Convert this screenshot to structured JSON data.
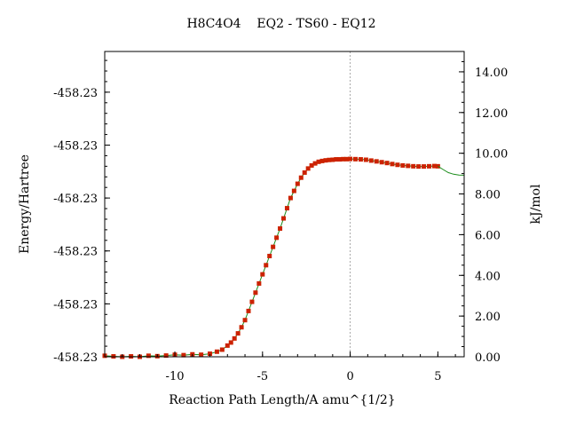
{
  "chart_data": {
    "type": "line",
    "title": "H8C4O4    EQ2 - TS60 - EQ12",
    "xlabel": "Reaction Path Length/A amu^{1/2}",
    "ylabel_left": "Energy/Hartree",
    "ylabel_right": "kJ/mol",
    "xlim": [
      -14,
      6.5
    ],
    "ylim_right": [
      0,
      15
    ],
    "x_ticks": [
      -10,
      -5,
      0,
      5
    ],
    "x_tick_labels": [
      "-10",
      "-5",
      "0",
      "5"
    ],
    "left_tick_labels": [
      "-458.23",
      "-458.23",
      "-458.23",
      "-458.23",
      "-458.23",
      "-458.23"
    ],
    "left_tick_values_kjmol": [
      0,
      2.6,
      5.2,
      7.8,
      10.4,
      13.0
    ],
    "right_ticks": [
      0,
      2,
      4,
      6,
      8,
      10,
      12,
      14
    ],
    "right_tick_labels": [
      "0.00",
      "2.00",
      "4.00",
      "6.00",
      "8.00",
      "10.00",
      "12.00",
      "14.00"
    ],
    "ts_marker_x": 0,
    "colors": {
      "points": "#cc2200",
      "line": "#1a8c1a",
      "ts_line": "#aaaaaa",
      "axis": "#000000"
    },
    "series": [
      {
        "marker": "square",
        "x": [
          -14,
          -13.5,
          -13,
          -12.5,
          -12,
          -11.5,
          -11,
          -10.5,
          -10,
          -9.5,
          -9,
          -8.5,
          -8,
          -7.6,
          -7.3,
          -7,
          -6.8,
          -6.6,
          -6.4,
          -6.2,
          -6,
          -5.8,
          -5.6,
          -5.4,
          -5.2,
          -5,
          -4.8,
          -4.6,
          -4.4,
          -4.2,
          -4,
          -3.8,
          -3.6,
          -3.4,
          -3.2,
          -3,
          -2.8,
          -2.6,
          -2.4,
          -2.2,
          -2,
          -1.8,
          -1.6,
          -1.4,
          -1.2,
          -1,
          -0.8,
          -0.6,
          -0.4,
          -0.2,
          0,
          0.3,
          0.6,
          0.9,
          1.2,
          1.5,
          1.8,
          2.1,
          2.4,
          2.7,
          3,
          3.3,
          3.6,
          3.9,
          4.2,
          4.5,
          4.8,
          5
        ],
        "y": [
          0.05,
          0.02,
          0.0,
          0.02,
          0.0,
          0.05,
          0.03,
          0.06,
          0.1,
          0.08,
          0.12,
          0.1,
          0.15,
          0.25,
          0.35,
          0.55,
          0.7,
          0.9,
          1.15,
          1.45,
          1.8,
          2.25,
          2.7,
          3.15,
          3.6,
          4.05,
          4.5,
          4.95,
          5.4,
          5.85,
          6.3,
          6.8,
          7.3,
          7.8,
          8.15,
          8.5,
          8.8,
          9.05,
          9.25,
          9.4,
          9.5,
          9.58,
          9.62,
          9.65,
          9.67,
          9.68,
          9.7,
          9.7,
          9.71,
          9.71,
          9.72,
          9.71,
          9.7,
          9.68,
          9.64,
          9.6,
          9.56,
          9.52,
          9.47,
          9.43,
          9.4,
          9.38,
          9.36,
          9.35,
          9.35,
          9.36,
          9.37,
          9.36
        ]
      },
      {
        "marker": "line",
        "x": [
          5,
          5.3,
          5.6,
          5.9,
          6.2,
          6.5
        ],
        "y": [
          9.36,
          9.2,
          9.05,
          8.97,
          8.93,
          8.92
        ]
      }
    ]
  }
}
